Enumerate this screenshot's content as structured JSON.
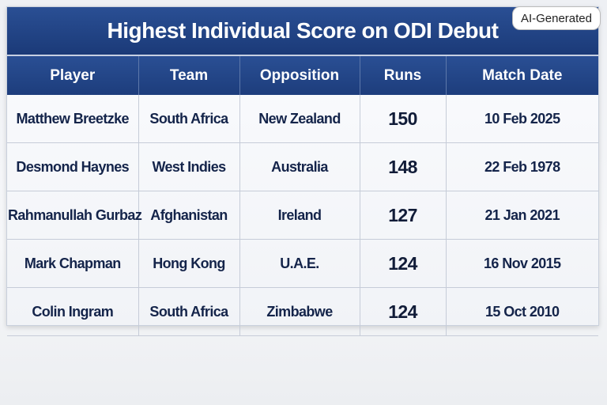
{
  "header": {
    "title": "Highest Individual Score on ODI Debut",
    "badge": "AI-Generated"
  },
  "table": {
    "columns": [
      "Player",
      "Team",
      "Opposition",
      "Runs",
      "Match Date"
    ],
    "rows": [
      [
        "Matthew Breetzke",
        "South Africa",
        "New Zealand",
        "150",
        "10 Feb 2025"
      ],
      [
        "Desmond Haynes",
        "West Indies",
        "Australia",
        "148",
        "22 Feb 1978"
      ],
      [
        "Rahmanullah Gurbaz",
        "Afghanistan",
        "Ireland",
        "127",
        "21 Jan 2021"
      ],
      [
        "Mark Chapman",
        "Hong Kong",
        "U.A.E.",
        "124",
        "16 Nov 2015"
      ],
      [
        "Colin Ingram",
        "South Africa",
        "Zimbabwe",
        "124",
        "15 Oct 2010"
      ]
    ]
  }
}
